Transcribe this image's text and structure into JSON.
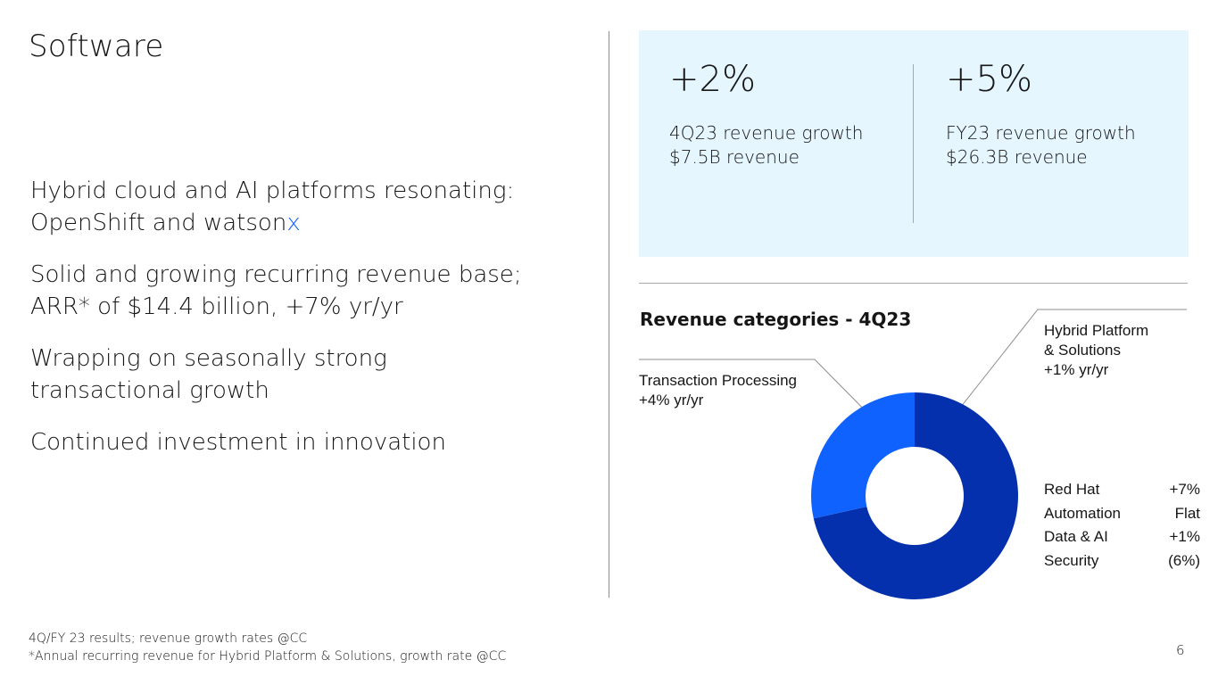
{
  "page": {
    "title": "Software",
    "page_number": "6",
    "colors": {
      "accent": "#0f62fe",
      "panel": "#e5f6ff",
      "donut_dark": "#0530ad",
      "donut_light": "#0f62fe"
    }
  },
  "bullets": {
    "b1_line1": "Hybrid cloud and AI platforms resonating:",
    "b1_line2_main": "OpenShift and watson",
    "b1_line2_accent": "x",
    "b2_line1": "Solid and growing recurring revenue base;",
    "b2_line2": "ARR* of $14.4 billion, +7% yr/yr",
    "b3_line1": "Wrapping on seasonally strong",
    "b3_line2": "transactional growth",
    "b4_line1": "Continued investment in innovation"
  },
  "kpis": [
    {
      "value": "+2%",
      "label1": "4Q23 revenue growth",
      "label2": "$7.5B revenue"
    },
    {
      "value": "+5%",
      "label1": "FY23 revenue growth",
      "label2": "$26.3B revenue"
    }
  ],
  "chart_data": {
    "type": "pie",
    "title": "Revenue categories - 4Q23",
    "donut": true,
    "slices": [
      {
        "label_line1": "Hybrid Platform",
        "label_line2": "& Solutions",
        "growth": "+1% yr/yr",
        "value": 0.715,
        "color": "#0530ad"
      },
      {
        "label_line1": "Transaction Processing",
        "growth": "+4% yr/yr",
        "value": 0.285,
        "color": "#0f62fe"
      }
    ],
    "segments": [
      {
        "name": "Red Hat",
        "growth": "+7%"
      },
      {
        "name": "Automation",
        "growth": "Flat"
      },
      {
        "name": "Data & AI",
        "growth": "+1%"
      },
      {
        "name": "Security",
        "growth": "(6%)"
      }
    ]
  },
  "footnotes": {
    "line1": "4Q/FY 23 results; revenue growth rates @CC",
    "line2": "*Annual recurring revenue for Hybrid Platform & Solutions, growth rate @CC"
  }
}
